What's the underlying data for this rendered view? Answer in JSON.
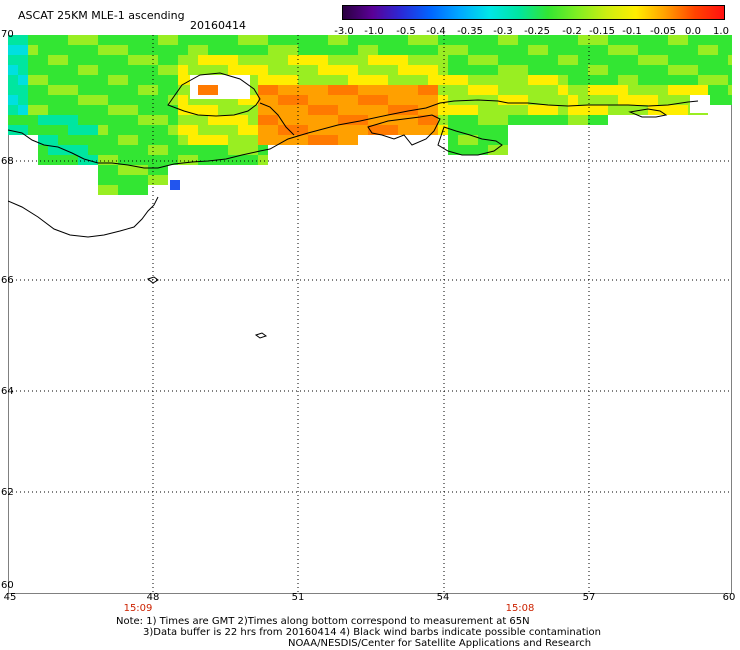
{
  "header": {
    "title": "ASCAT 25KM MLE-1 ascending",
    "date": "20160414"
  },
  "colorbar": {
    "ticks": [
      "-3.0",
      "-1.0",
      "-0.5",
      "-0.4",
      "-0.35",
      "-0.3",
      "-0.25",
      "-0.2",
      "-0.15",
      "-0.1",
      "-0.05",
      "0.0",
      "1.0"
    ],
    "colors": [
      "#2a0040",
      "#5a0096",
      "#2a2ad8",
      "#0066ff",
      "#00aaff",
      "#00e6e6",
      "#00e6a0",
      "#33e633",
      "#80ee22",
      "#ccee11",
      "#ffee00",
      "#ffa000",
      "#ff4400",
      "#ff1010"
    ]
  },
  "map": {
    "lat_labels": [
      "70",
      "68",
      "66",
      "64",
      "62",
      "60"
    ],
    "lon_labels": [
      "45",
      "48",
      "51",
      "54",
      "57",
      "60"
    ],
    "times": [
      "15:09",
      "15:08"
    ],
    "data_colors": {
      "green": "#33e633",
      "lime": "#99ee22",
      "yellow": "#ffee00",
      "orange": "#ffa000",
      "darkorange": "#ff7a00",
      "aqua": "#00e6a0",
      "cyan": "#00e0e0",
      "blue": "#2255ee"
    }
  },
  "footer": {
    "line1": "Note: 1) Times are GMT 2)Times along bottom correspond to measurement at 65N",
    "line2": "3)Data buffer is 22 hrs from 20160414 4) Black wind barbs indicate possible contamination",
    "line3": "NOAA/NESDIS/Center for Satellite Applications and Research"
  }
}
